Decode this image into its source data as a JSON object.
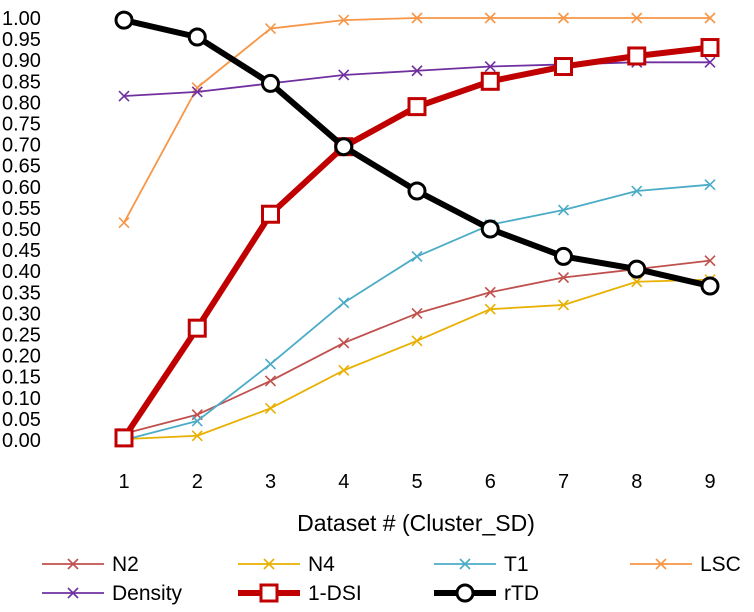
{
  "chart_data": {
    "type": "line",
    "title": "",
    "xlabel": "Dataset # (Cluster_SD)",
    "ylabel": "",
    "x": [
      1,
      2,
      3,
      4,
      5,
      6,
      7,
      8,
      9
    ],
    "xticks": [
      "1",
      "2",
      "3",
      "4",
      "5",
      "6",
      "7",
      "8",
      "9"
    ],
    "ylim": [
      0,
      1
    ],
    "yticks": [
      "0.00",
      "0.05",
      "0.10",
      "0.15",
      "0.20",
      "0.25",
      "0.30",
      "0.35",
      "0.40",
      "0.45",
      "0.50",
      "0.55",
      "0.60",
      "0.65",
      "0.70",
      "0.75",
      "0.80",
      "0.85",
      "0.90",
      "0.95",
      "1.00"
    ],
    "grid": false,
    "legend_position": "bottom",
    "series": [
      {
        "name": "N2",
        "color": "#C0504D",
        "marker": "x",
        "bold": false,
        "values": [
          0.015,
          0.06,
          0.14,
          0.23,
          0.3,
          0.35,
          0.385,
          0.405,
          0.425
        ]
      },
      {
        "name": "N4",
        "color": "#E8B000",
        "marker": "x",
        "bold": false,
        "values": [
          0.002,
          0.01,
          0.075,
          0.165,
          0.235,
          0.31,
          0.32,
          0.375,
          0.38
        ]
      },
      {
        "name": "T1",
        "color": "#4BACC6",
        "marker": "x",
        "bold": false,
        "values": [
          0.0,
          0.045,
          0.18,
          0.325,
          0.435,
          0.51,
          0.545,
          0.59,
          0.605
        ]
      },
      {
        "name": "LSC",
        "color": "#F79646",
        "marker": "x",
        "bold": false,
        "values": [
          0.515,
          0.835,
          0.975,
          0.995,
          1.0,
          1.0,
          1.0,
          1.0,
          1.0
        ]
      },
      {
        "name": "Density",
        "color": "#7030A0",
        "marker": "x",
        "bold": false,
        "values": [
          0.815,
          0.825,
          0.845,
          0.865,
          0.875,
          0.885,
          0.89,
          0.895,
          0.895
        ]
      },
      {
        "name": "1-DSI",
        "color": "#C00000",
        "marker": "square",
        "bold": true,
        "values": [
          0.005,
          0.265,
          0.535,
          0.695,
          0.79,
          0.85,
          0.885,
          0.91,
          0.93
        ]
      },
      {
        "name": "rTD",
        "color": "#000000",
        "marker": "circle",
        "bold": true,
        "values": [
          0.995,
          0.955,
          0.845,
          0.695,
          0.59,
          0.5,
          0.435,
          0.405,
          0.365
        ]
      }
    ]
  }
}
